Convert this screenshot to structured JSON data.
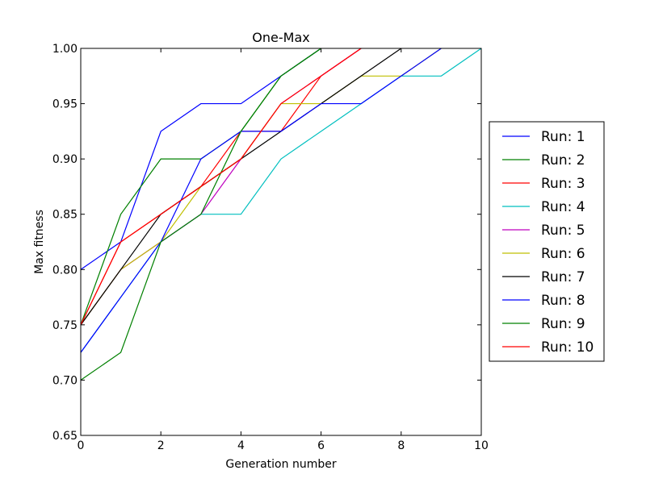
{
  "chart_data": {
    "type": "line",
    "title": "One-Max",
    "xlabel": "Generation number",
    "ylabel": "Max fitness",
    "xlim": [
      0,
      10
    ],
    "ylim": [
      0.65,
      1.0
    ],
    "xticks": [
      0,
      2,
      4,
      6,
      8,
      10
    ],
    "xtick_labels": [
      "0",
      "2",
      "4",
      "6",
      "8",
      "10"
    ],
    "yticks": [
      0.65,
      0.7,
      0.75,
      0.8,
      0.85,
      0.9,
      0.95,
      1.0
    ],
    "ytick_labels": [
      "0.65",
      "0.70",
      "0.75",
      "0.80",
      "0.85",
      "0.90",
      "0.95",
      "1.00"
    ],
    "grid": false,
    "legend_position": "outside-right",
    "series": [
      {
        "name": "Run: 1",
        "color": "#0000ff",
        "x": [
          0,
          1,
          2,
          3,
          4,
          5,
          6
        ],
        "y": [
          0.8,
          0.825,
          0.925,
          0.95,
          0.95,
          0.975,
          1.0
        ]
      },
      {
        "name": "Run: 2",
        "color": "#008000",
        "x": [
          0,
          1,
          2,
          3,
          4,
          5,
          6
        ],
        "y": [
          0.75,
          0.85,
          0.9,
          0.9,
          0.925,
          0.975,
          1.0
        ]
      },
      {
        "name": "Run: 3",
        "color": "#ff0000",
        "x": [
          0,
          1,
          2,
          3,
          4,
          5,
          6,
          7
        ],
        "y": [
          0.75,
          0.825,
          0.85,
          0.875,
          0.925,
          0.925,
          0.975,
          1.0
        ]
      },
      {
        "name": "Run: 4",
        "color": "#00bfbf",
        "x": [
          0,
          1,
          2,
          3,
          4,
          5,
          6,
          7,
          8,
          9,
          10
        ],
        "y": [
          0.725,
          0.775,
          0.825,
          0.85,
          0.85,
          0.9,
          0.925,
          0.95,
          0.975,
          0.975,
          1.0
        ]
      },
      {
        "name": "Run: 5",
        "color": "#bf00bf",
        "x": [
          0,
          1,
          2,
          3,
          4,
          5,
          6,
          7
        ],
        "y": [
          0.75,
          0.8,
          0.825,
          0.85,
          0.9,
          0.95,
          0.975,
          1.0
        ]
      },
      {
        "name": "Run: 6",
        "color": "#bfbf00",
        "x": [
          0,
          1,
          2,
          3,
          4,
          5,
          6,
          7,
          8,
          9
        ],
        "y": [
          0.75,
          0.8,
          0.825,
          0.875,
          0.9,
          0.95,
          0.95,
          0.975,
          0.975,
          1.0
        ]
      },
      {
        "name": "Run: 7",
        "color": "#000000",
        "x": [
          0,
          1,
          2,
          3,
          4,
          5,
          6,
          7,
          8
        ],
        "y": [
          0.75,
          0.8,
          0.85,
          0.875,
          0.9,
          0.925,
          0.95,
          0.975,
          1.0
        ]
      },
      {
        "name": "Run: 8",
        "color": "#0000ff",
        "x": [
          0,
          1,
          2,
          3,
          4,
          5,
          6,
          7,
          8,
          9
        ],
        "y": [
          0.725,
          0.775,
          0.825,
          0.9,
          0.925,
          0.925,
          0.95,
          0.95,
          0.975,
          1.0
        ]
      },
      {
        "name": "Run: 9",
        "color": "#008000",
        "x": [
          0,
          1,
          2,
          3,
          4,
          5,
          6
        ],
        "y": [
          0.7,
          0.725,
          0.825,
          0.85,
          0.925,
          0.975,
          1.0
        ]
      },
      {
        "name": "Run: 10",
        "color": "#ff0000",
        "x": [
          0,
          1,
          2,
          3,
          4,
          5,
          6,
          7
        ],
        "y": [
          0.75,
          0.825,
          0.85,
          0.875,
          0.9,
          0.95,
          0.975,
          1.0
        ]
      }
    ]
  }
}
